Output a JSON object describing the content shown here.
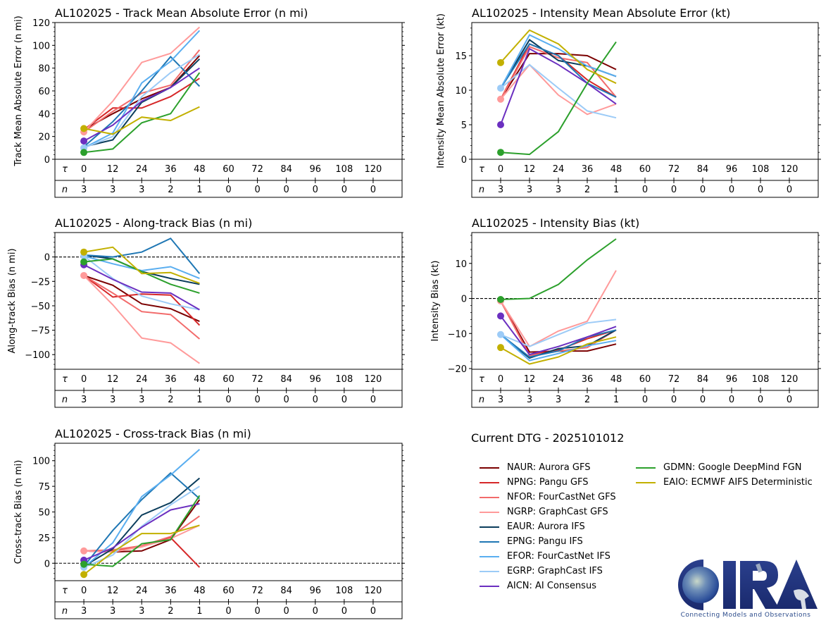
{
  "figure": {
    "legend_title": "Current DTG - 2025101012",
    "logo": {
      "name": "CIRA",
      "caption": "Connecting Models and Observations"
    },
    "table_row_labels": {
      "tau": "τ",
      "n": "n"
    }
  },
  "models": [
    {
      "id": "NAUR",
      "label": "NAUR: Aurora GFS",
      "color": "#7b0000"
    },
    {
      "id": "NPNG",
      "label": "NPNG: Pangu GFS",
      "color": "#d62728"
    },
    {
      "id": "NFOR",
      "label": "NFOR: FourCastNet GFS",
      "color": "#f26b6b"
    },
    {
      "id": "NGRP",
      "label": "NGRP: GraphCast GFS",
      "color": "#ff9a9a"
    },
    {
      "id": "EAUR",
      "label": "EAUR: Aurora IFS",
      "color": "#0b3d5c"
    },
    {
      "id": "EPNG",
      "label": "EPNG: Pangu IFS",
      "color": "#1f77b4"
    },
    {
      "id": "EFOR",
      "label": "EFOR: FourCastNet IFS",
      "color": "#5aaef0"
    },
    {
      "id": "EGRP",
      "label": "EGRP: GraphCast IFS",
      "color": "#9ccbf7"
    },
    {
      "id": "AICN",
      "label": "AICN: AI Consensus",
      "color": "#6b2fc0"
    },
    {
      "id": "GDMN",
      "label": "GDMN: Google DeepMind FGN",
      "color": "#2ca02c"
    },
    {
      "id": "EAIO",
      "label": "EAIO: ECMWF AIFS Deterministic",
      "color": "#c2b000"
    }
  ],
  "chart_data": [
    {
      "type": "line",
      "title": "AL102025 - Track Mean Absolute Error (n mi)",
      "xlabel": "τ",
      "ylabel": "Track Mean Absolute Error (n mi)",
      "ylim": [
        0,
        120
      ],
      "yticks": [
        0,
        20,
        40,
        60,
        80,
        100,
        120
      ],
      "zero_line": false,
      "x": [
        0,
        12,
        24,
        36,
        48,
        60,
        72,
        84,
        96,
        108,
        120
      ],
      "n": [
        3,
        3,
        3,
        2,
        1,
        0,
        0,
        0,
        0,
        0,
        0
      ],
      "series": [
        {
          "name": "NAUR",
          "values": [
            26,
            40,
            53,
            63,
            91
          ]
        },
        {
          "name": "NPNG",
          "values": [
            26,
            45,
            45,
            55,
            71
          ]
        },
        {
          "name": "NFOR",
          "values": [
            24,
            42,
            58,
            65,
            96
          ]
        },
        {
          "name": "NGRP",
          "values": [
            24,
            51,
            85,
            93,
            116
          ]
        },
        {
          "name": "EAUR",
          "values": [
            11,
            17,
            50,
            63,
            88
          ]
        },
        {
          "name": "EPNG",
          "values": [
            11,
            33,
            60,
            90,
            64
          ]
        },
        {
          "name": "EFOR",
          "values": [
            10,
            23,
            67,
            86,
            113
          ]
        },
        {
          "name": "EGRP",
          "values": [
            10,
            20,
            55,
            76,
            92
          ]
        },
        {
          "name": "AICN",
          "values": [
            16,
            30,
            51,
            63,
            80
          ]
        },
        {
          "name": "GDMN",
          "values": [
            6,
            9,
            32,
            40,
            76
          ]
        },
        {
          "name": "EAIO",
          "values": [
            27,
            22,
            37,
            34,
            46
          ]
        }
      ],
      "markers_at_zero": [
        "NGRP",
        "EAIO",
        "AICN",
        "EGRP",
        "GDMN"
      ]
    },
    {
      "type": "line",
      "title": "AL102025 - Intensity Mean Absolute Error (kt)",
      "xlabel": "τ",
      "ylabel": "Intensity Mean Absolute Error (kt)",
      "ylim": [
        0,
        19.8
      ],
      "yticks": [
        0,
        5,
        10,
        15
      ],
      "zero_line": false,
      "x": [
        0,
        12,
        24,
        36,
        48,
        60,
        72,
        84,
        96,
        108,
        120
      ],
      "n": [
        3,
        3,
        3,
        2,
        1,
        0,
        0,
        0,
        0,
        0,
        0
      ],
      "series": [
        {
          "name": "NAUR",
          "values": [
            8.7,
            15.3,
            15.3,
            15.0,
            13.0
          ]
        },
        {
          "name": "NPNG",
          "values": [
            8.7,
            16.7,
            15.0,
            11.5,
            9.0
          ]
        },
        {
          "name": "NFOR",
          "values": [
            8.7,
            16.3,
            14.7,
            14.0,
            9.0
          ]
        },
        {
          "name": "NGRP",
          "values": [
            8.7,
            13.7,
            9.3,
            6.5,
            8.0
          ]
        },
        {
          "name": "EAUR",
          "values": [
            10.3,
            17.3,
            14.3,
            13.5,
            12.0
          ]
        },
        {
          "name": "EPNG",
          "values": [
            10.3,
            16.7,
            15.0,
            11.0,
            9.0
          ]
        },
        {
          "name": "EFOR",
          "values": [
            10.3,
            18.0,
            16.0,
            13.5,
            12.0
          ]
        },
        {
          "name": "EGRP",
          "values": [
            10.3,
            13.7,
            10.3,
            7.0,
            6.0
          ]
        },
        {
          "name": "AICN",
          "values": [
            5.0,
            16.0,
            13.7,
            11.0,
            8.0
          ]
        },
        {
          "name": "GDMN",
          "values": [
            1.0,
            0.7,
            4.0,
            11.0,
            17.0
          ]
        },
        {
          "name": "EAIO",
          "values": [
            14.0,
            18.7,
            16.7,
            13.0,
            11.0
          ]
        }
      ],
      "markers_at_zero": [
        "EAIO",
        "EGRP",
        "NGRP",
        "AICN",
        "GDMN"
      ]
    },
    {
      "type": "line",
      "title": "AL102025 - Along-track Bias (n mi)",
      "xlabel": "τ",
      "ylabel": "Along-track Bias (n mi)",
      "ylim": [
        -115,
        25
      ],
      "yticks": [
        -100,
        -75,
        -50,
        -25,
        0
      ],
      "zero_line": true,
      "x": [
        0,
        12,
        24,
        36,
        48,
        60,
        72,
        84,
        96,
        108,
        120
      ],
      "n": [
        3,
        3,
        3,
        2,
        1,
        0,
        0,
        0,
        0,
        0,
        0
      ],
      "series": [
        {
          "name": "NAUR",
          "values": [
            -19,
            -29,
            -48,
            -53,
            -66
          ]
        },
        {
          "name": "NPNG",
          "values": [
            -19,
            -41,
            -38,
            -39,
            -70
          ]
        },
        {
          "name": "NFOR",
          "values": [
            -19,
            -37,
            -56,
            -59,
            -84
          ]
        },
        {
          "name": "NGRP",
          "values": [
            -19,
            -49,
            -83,
            -88,
            -109
          ]
        },
        {
          "name": "EAUR",
          "values": [
            2,
            -2,
            -15,
            -22,
            -28
          ]
        },
        {
          "name": "EPNG",
          "values": [
            2,
            0,
            5,
            19,
            -17
          ]
        },
        {
          "name": "EFOR",
          "values": [
            1,
            -7,
            -14,
            -10,
            -22
          ]
        },
        {
          "name": "EGRP",
          "values": [
            1,
            -22,
            -40,
            -48,
            -54
          ]
        },
        {
          "name": "AICN",
          "values": [
            -8,
            -23,
            -36,
            -37,
            -54
          ]
        },
        {
          "name": "GDMN",
          "values": [
            -5,
            -2,
            -15,
            -28,
            -37
          ]
        },
        {
          "name": "EAIO",
          "values": [
            5,
            10,
            -17,
            -16,
            -27
          ]
        }
      ],
      "markers_at_zero": [
        "NGRP",
        "AICN",
        "GDMN",
        "EGRP",
        "EAIO"
      ]
    },
    {
      "type": "line",
      "title": "AL102025 - Intensity Bias (kt)",
      "xlabel": "τ",
      "ylabel": "Intensity Bias (kt)",
      "ylim": [
        -20.2,
        18.8
      ],
      "yticks": [
        -20,
        -10,
        0,
        10
      ],
      "zero_line": true,
      "x": [
        0,
        12,
        24,
        36,
        48,
        60,
        72,
        84,
        96,
        108,
        120
      ],
      "n": [
        3,
        3,
        3,
        2,
        1,
        0,
        0,
        0,
        0,
        0,
        0
      ],
      "series": [
        {
          "name": "NAUR",
          "values": [
            -0.7,
            -15.3,
            -15.0,
            -15.0,
            -13.0
          ]
        },
        {
          "name": "NPNG",
          "values": [
            -0.7,
            -16.0,
            -14.7,
            -11.5,
            -9.0
          ]
        },
        {
          "name": "NFOR",
          "values": [
            -0.7,
            -16.3,
            -15.0,
            -14.0,
            -9.0
          ]
        },
        {
          "name": "NGRP",
          "values": [
            -0.7,
            -13.7,
            -9.3,
            -6.5,
            8.0
          ]
        },
        {
          "name": "EAUR",
          "values": [
            -10.3,
            -17.0,
            -14.3,
            -13.5,
            -9.0
          ]
        },
        {
          "name": "EPNG",
          "values": [
            -10.3,
            -16.7,
            -15.0,
            -11.0,
            -9.0
          ]
        },
        {
          "name": "EFOR",
          "values": [
            -10.3,
            -17.7,
            -15.7,
            -13.5,
            -12.0
          ]
        },
        {
          "name": "EGRP",
          "values": [
            -10.3,
            -13.7,
            -10.3,
            -7.0,
            -6.0
          ]
        },
        {
          "name": "AICN",
          "values": [
            -5.0,
            -16.0,
            -13.7,
            -11.0,
            -8.0
          ]
        },
        {
          "name": "GDMN",
          "values": [
            -0.3,
            0.0,
            4.0,
            11.0,
            17.0
          ]
        },
        {
          "name": "EAIO",
          "values": [
            -14.0,
            -18.7,
            -16.7,
            -13.0,
            -11.0
          ]
        }
      ],
      "markers_at_zero": [
        "NGRP",
        "GDMN",
        "AICN",
        "EGRP",
        "EAIO"
      ]
    },
    {
      "type": "line",
      "title": "AL102025 - Cross-track Bias (n mi)",
      "xlabel": "τ",
      "ylabel": "Cross-track Bias (n mi)",
      "ylim": [
        -17,
        117
      ],
      "yticks": [
        0,
        25,
        50,
        75,
        100
      ],
      "zero_line": true,
      "x": [
        0,
        12,
        24,
        36,
        48,
        60,
        72,
        84,
        96,
        108,
        120
      ],
      "n": [
        3,
        3,
        3,
        2,
        1,
        0,
        0,
        0,
        0,
        0,
        0
      ],
      "series": [
        {
          "name": "NAUR",
          "values": [
            12,
            11,
            12,
            23,
            62
          ]
        },
        {
          "name": "NPNG",
          "values": [
            12,
            12,
            16,
            25,
            -4
          ]
        },
        {
          "name": "NFOR",
          "values": [
            12,
            13,
            17,
            26,
            46
          ]
        },
        {
          "name": "NGRP",
          "values": [
            12,
            11,
            16,
            24,
            37
          ]
        },
        {
          "name": "EAUR",
          "values": [
            -3,
            14,
            47,
            59,
            83
          ]
        },
        {
          "name": "EPNG",
          "values": [
            -3,
            32,
            62,
            88,
            63
          ]
        },
        {
          "name": "EFOR",
          "values": [
            -4,
            20,
            65,
            86,
            111
          ]
        },
        {
          "name": "EGRP",
          "values": [
            -4,
            8,
            36,
            57,
            75
          ]
        },
        {
          "name": "AICN",
          "values": [
            3,
            15,
            35,
            52,
            58
          ]
        },
        {
          "name": "GDMN",
          "values": [
            -1,
            -3,
            19,
            23,
            66
          ]
        },
        {
          "name": "EAIO",
          "values": [
            -11,
            11,
            29,
            29,
            37
          ]
        }
      ],
      "markers_at_zero": [
        "NGRP",
        "AICN",
        "EGRP",
        "GDMN",
        "EAIO"
      ]
    }
  ]
}
